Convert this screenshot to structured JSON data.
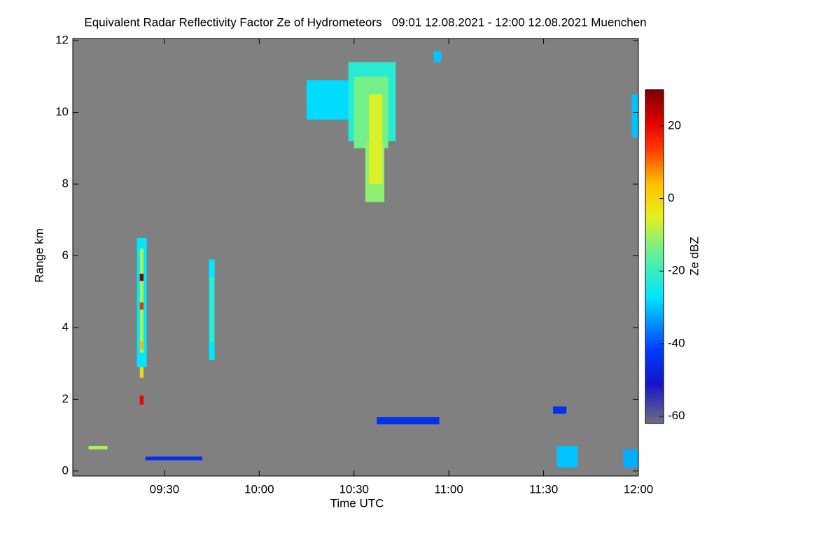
{
  "chart_data": {
    "type": "heatmap",
    "title": "Equivalent Radar Reflectivity Factor Ze of Hydrometeors   09:01 12.08.2021 - 12:00 12.08.2021 Muenchen",
    "x_label": "Time UTC",
    "y_label": "Range km",
    "colorbar_label": "Ze dBZ",
    "xlim": [
      9.0167,
      12.0
    ],
    "xticks": [
      {
        "value": 9.5,
        "label": "09:30"
      },
      {
        "value": 10.0,
        "label": "10:00"
      },
      {
        "value": 10.5,
        "label": "10:30"
      },
      {
        "value": 11.0,
        "label": "11:00"
      },
      {
        "value": 11.5,
        "label": "11:30"
      },
      {
        "value": 12.0,
        "label": "12:00"
      }
    ],
    "ylim": [
      -0.14,
      12.06
    ],
    "yticks": [
      0,
      2,
      4,
      6,
      8,
      10,
      12
    ],
    "clim": [
      -62,
      30
    ],
    "cticks": [
      20,
      0,
      -20,
      -40,
      -60
    ],
    "background": "#808080",
    "cells": [
      {
        "x": [
          9.355,
          9.407
        ],
        "y": [
          2.9,
          6.5
        ],
        "value": -27
      },
      {
        "x": [
          9.37,
          9.39
        ],
        "y": [
          3.3,
          6.2
        ],
        "value": -10
      },
      {
        "x": [
          9.37,
          9.39
        ],
        "y": [
          5.3,
          5.5
        ],
        "value": 28
      },
      {
        "x": [
          9.37,
          9.39
        ],
        "y": [
          4.5,
          4.7
        ],
        "value": 15
      },
      {
        "x": [
          9.37,
          9.39
        ],
        "y": [
          3.4,
          3.6
        ],
        "value": 5
      },
      {
        "x": [
          9.37,
          9.39
        ],
        "y": [
          2.6,
          2.9
        ],
        "value": 0
      },
      {
        "x": [
          9.37,
          9.39
        ],
        "y": [
          1.85,
          2.1
        ],
        "value": 20
      },
      {
        "x": [
          9.735,
          9.765
        ],
        "y": [
          3.1,
          5.9
        ],
        "value": -27
      },
      {
        "x": [
          9.74,
          9.76
        ],
        "y": [
          3.6,
          5.4
        ],
        "value": -20
      },
      {
        "x": [
          10.25,
          10.715
        ],
        "y": [
          9.8,
          10.9
        ],
        "value": -28
      },
      {
        "x": [
          10.47,
          10.72
        ],
        "y": [
          9.2,
          11.4
        ],
        "value": -22
      },
      {
        "x": [
          10.5,
          10.68
        ],
        "y": [
          9.0,
          11.0
        ],
        "value": -14
      },
      {
        "x": [
          10.56,
          10.66
        ],
        "y": [
          7.5,
          9.2
        ],
        "value": -12
      },
      {
        "x": [
          10.58,
          10.65
        ],
        "y": [
          8.0,
          10.5
        ],
        "value": -6
      },
      {
        "x": [
          11.965,
          12.0
        ],
        "y": [
          9.3,
          10.5
        ],
        "value": -30
      },
      {
        "x": [
          11.57,
          11.68
        ],
        "y": [
          0.1,
          0.7
        ],
        "value": -30
      },
      {
        "x": [
          11.92,
          12.0
        ],
        "y": [
          0.1,
          0.6
        ],
        "value": -32
      },
      {
        "x": [
          10.62,
          10.95
        ],
        "y": [
          1.3,
          1.5
        ],
        "value": -45
      },
      {
        "x": [
          9.1,
          9.2
        ],
        "y": [
          0.6,
          0.7
        ],
        "value": -10
      },
      {
        "x": [
          9.4,
          9.7
        ],
        "y": [
          0.3,
          0.4
        ],
        "value": -45
      },
      {
        "x": [
          11.55,
          11.62
        ],
        "y": [
          1.6,
          1.8
        ],
        "value": -45
      },
      {
        "x": [
          10.92,
          10.96
        ],
        "y": [
          11.4,
          11.7
        ],
        "value": -30
      }
    ]
  }
}
